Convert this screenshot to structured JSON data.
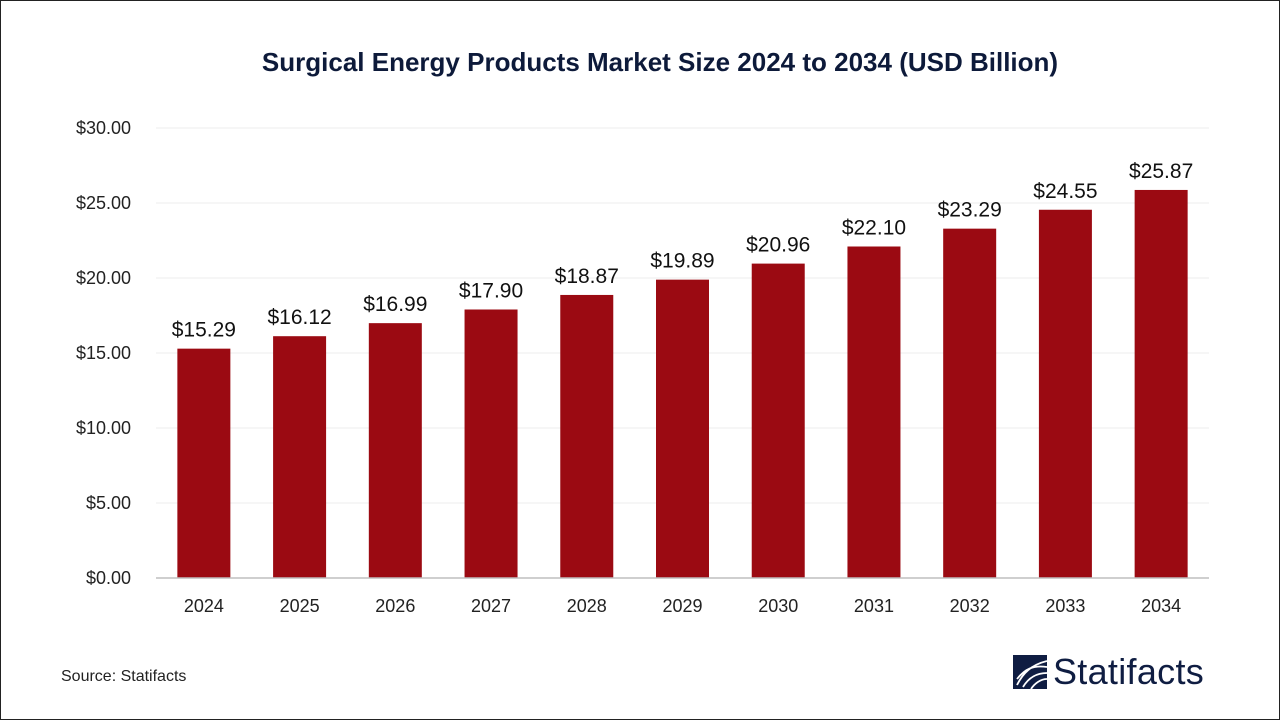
{
  "chart_data": {
    "type": "bar",
    "title": "Surgical Energy Products Market Size 2024 to 2034 (USD Billion)",
    "categories": [
      "2024",
      "2025",
      "2026",
      "2027",
      "2028",
      "2029",
      "2030",
      "2031",
      "2032",
      "2033",
      "2034"
    ],
    "values": [
      15.29,
      16.12,
      16.99,
      17.9,
      18.87,
      19.89,
      20.96,
      22.1,
      23.29,
      24.55,
      25.87
    ],
    "data_labels": [
      "$15.29",
      "$16.12",
      "$16.99",
      "$17.90",
      "$18.87",
      "$19.89",
      "$20.96",
      "$22.10",
      "$23.29",
      "$24.55",
      "$25.87"
    ],
    "y_ticks": [
      0,
      5,
      10,
      15,
      20,
      25,
      30
    ],
    "y_tick_labels": [
      "$0.00",
      "$5.00",
      "$10.00",
      "$15.00",
      "$20.00",
      "$25.00",
      "$30.00"
    ],
    "ylim": [
      0,
      30
    ],
    "xlabel": "",
    "ylabel": "",
    "grid": true,
    "bar_color": "#9b0a12"
  },
  "source": "Source: Statifacts",
  "logo": {
    "text": "Statifacts",
    "color": "#0f1d42"
  }
}
